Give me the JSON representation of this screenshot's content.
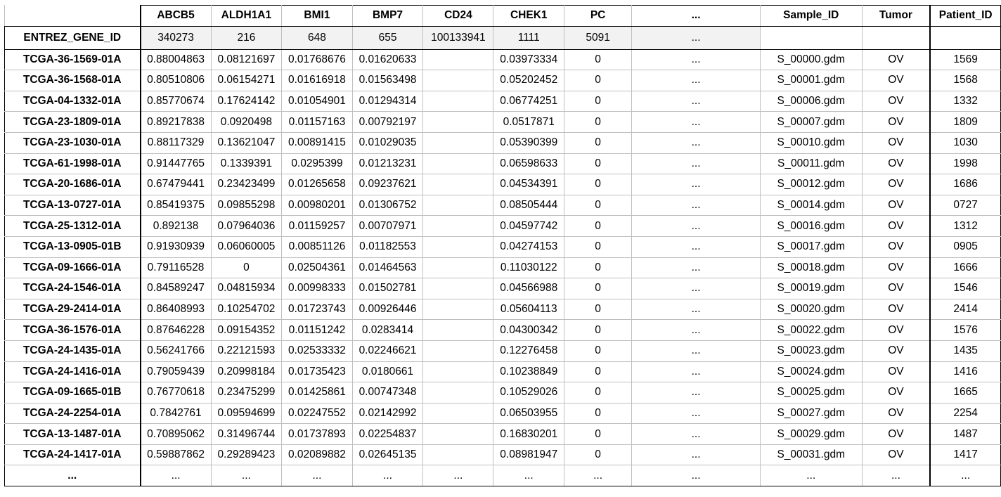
{
  "table": {
    "header_label": "ENTREZ_GENE_ID",
    "columns": [
      "ABCB5",
      "ALDH1A1",
      "BMI1",
      "BMP7",
      "CD24",
      "CHEK1",
      "PC",
      "...",
      "Sample_ID",
      "Tumor",
      "Patient_ID"
    ],
    "gene_ids": [
      "340273",
      "216",
      "648",
      "655",
      "100133941",
      "1111",
      "5091",
      "...",
      "",
      "",
      ""
    ],
    "rows": [
      {
        "label": "TCGA-36-1569-01A",
        "cells": [
          "0.88004863",
          "0.08121697",
          "0.01768676",
          "0.01620633",
          "",
          "0.03973334",
          "0",
          "...",
          "S_00000.gdm",
          "OV",
          "1569"
        ]
      },
      {
        "label": "TCGA-36-1568-01A",
        "cells": [
          "0.80510806",
          "0.06154271",
          "0.01616918",
          "0.01563498",
          "",
          "0.05202452",
          "0",
          "...",
          "S_00001.gdm",
          "OV",
          "1568"
        ]
      },
      {
        "label": "TCGA-04-1332-01A",
        "cells": [
          "0.85770674",
          "0.17624142",
          "0.01054901",
          "0.01294314",
          "",
          "0.06774251",
          "0",
          "...",
          "S_00006.gdm",
          "OV",
          "1332"
        ]
      },
      {
        "label": "TCGA-23-1809-01A",
        "cells": [
          "0.89217838",
          "0.0920498",
          "0.01157163",
          "0.00792197",
          "",
          "0.0517871",
          "0",
          "...",
          "S_00007.gdm",
          "OV",
          "1809"
        ]
      },
      {
        "label": "TCGA-23-1030-01A",
        "cells": [
          "0.88117329",
          "0.13621047",
          "0.00891415",
          "0.01029035",
          "",
          "0.05390399",
          "0",
          "...",
          "S_00010.gdm",
          "OV",
          "1030"
        ]
      },
      {
        "label": "TCGA-61-1998-01A",
        "cells": [
          "0.91447765",
          "0.1339391",
          "0.0295399",
          "0.01213231",
          "",
          "0.06598633",
          "0",
          "...",
          "S_00011.gdm",
          "OV",
          "1998"
        ]
      },
      {
        "label": "TCGA-20-1686-01A",
        "cells": [
          "0.67479441",
          "0.23423499",
          "0.01265658",
          "0.09237621",
          "",
          "0.04534391",
          "0",
          "...",
          "S_00012.gdm",
          "OV",
          "1686"
        ]
      },
      {
        "label": "TCGA-13-0727-01A",
        "cells": [
          "0.85419375",
          "0.09855298",
          "0.00980201",
          "0.01306752",
          "",
          "0.08505444",
          "0",
          "...",
          "S_00014.gdm",
          "OV",
          "0727"
        ]
      },
      {
        "label": "TCGA-25-1312-01A",
        "cells": [
          "0.892138",
          "0.07964036",
          "0.01159257",
          "0.00707971",
          "",
          "0.04597742",
          "0",
          "...",
          "S_00016.gdm",
          "OV",
          "1312"
        ]
      },
      {
        "label": "TCGA-13-0905-01B",
        "cells": [
          "0.91930939",
          "0.06060005",
          "0.00851126",
          "0.01182553",
          "",
          "0.04274153",
          "0",
          "...",
          "S_00017.gdm",
          "OV",
          "0905"
        ]
      },
      {
        "label": "TCGA-09-1666-01A",
        "cells": [
          "0.79116528",
          "0",
          "0.02504361",
          "0.01464563",
          "",
          "0.11030122",
          "0",
          "...",
          "S_00018.gdm",
          "OV",
          "1666"
        ]
      },
      {
        "label": "TCGA-24-1546-01A",
        "cells": [
          "0.84589247",
          "0.04815934",
          "0.00998333",
          "0.01502781",
          "",
          "0.04566988",
          "0",
          "...",
          "S_00019.gdm",
          "OV",
          "1546"
        ]
      },
      {
        "label": "TCGA-29-2414-01A",
        "cells": [
          "0.86408993",
          "0.10254702",
          "0.01723743",
          "0.00926446",
          "",
          "0.05604113",
          "0",
          "...",
          "S_00020.gdm",
          "OV",
          "2414"
        ]
      },
      {
        "label": "TCGA-36-1576-01A",
        "cells": [
          "0.87646228",
          "0.09154352",
          "0.01151242",
          "0.0283414",
          "",
          "0.04300342",
          "0",
          "...",
          "S_00022.gdm",
          "OV",
          "1576"
        ]
      },
      {
        "label": "TCGA-24-1435-01A",
        "cells": [
          "0.56241766",
          "0.22121593",
          "0.02533332",
          "0.02246621",
          "",
          "0.12276458",
          "0",
          "...",
          "S_00023.gdm",
          "OV",
          "1435"
        ]
      },
      {
        "label": "TCGA-24-1416-01A",
        "cells": [
          "0.79059439",
          "0.20998184",
          "0.01735423",
          "0.0180661",
          "",
          "0.10238849",
          "0",
          "...",
          "S_00024.gdm",
          "OV",
          "1416"
        ]
      },
      {
        "label": "TCGA-09-1665-01B",
        "cells": [
          "0.76770618",
          "0.23475299",
          "0.01425861",
          "0.00747348",
          "",
          "0.10529026",
          "0",
          "...",
          "S_00025.gdm",
          "OV",
          "1665"
        ]
      },
      {
        "label": "TCGA-24-2254-01A",
        "cells": [
          "0.7842761",
          "0.09594699",
          "0.02247552",
          "0.02142992",
          "",
          "0.06503955",
          "0",
          "...",
          "S_00027.gdm",
          "OV",
          "2254"
        ]
      },
      {
        "label": "TCGA-13-1487-01A",
        "cells": [
          "0.70895062",
          "0.31496744",
          "0.01737893",
          "0.02254837",
          "",
          "0.16830201",
          "0",
          "...",
          "S_00029.gdm",
          "OV",
          "1487"
        ]
      },
      {
        "label": "TCGA-24-1417-01A",
        "cells": [
          "0.59887862",
          "0.29289423",
          "0.02089882",
          "0.02645135",
          "",
          "0.08981947",
          "0",
          "...",
          "S_00031.gdm",
          "OV",
          "1417"
        ]
      }
    ],
    "ellipsis_row": {
      "label": "...",
      "cells": [
        "...",
        "...",
        "...",
        "...",
        "...",
        "...",
        "...",
        "...",
        "...",
        "...",
        "..."
      ]
    }
  }
}
